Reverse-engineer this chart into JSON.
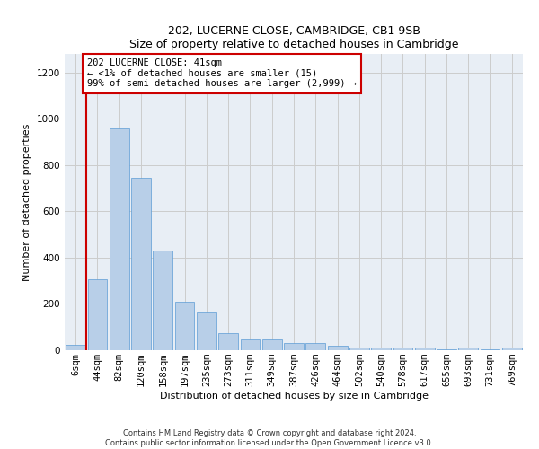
{
  "title1": "202, LUCERNE CLOSE, CAMBRIDGE, CB1 9SB",
  "title2": "Size of property relative to detached houses in Cambridge",
  "xlabel": "Distribution of detached houses by size in Cambridge",
  "ylabel": "Number of detached properties",
  "annotation_line1": "202 LUCERNE CLOSE: 41sqm",
  "annotation_line2": "← <1% of detached houses are smaller (15)",
  "annotation_line3": "99% of semi-detached houses are larger (2,999) →",
  "footer1": "Contains HM Land Registry data © Crown copyright and database right 2024.",
  "footer2": "Contains public sector information licensed under the Open Government Licence v3.0.",
  "bar_color": "#b8cfe8",
  "bar_edge_color": "#5b9bd5",
  "annotation_box_color": "#cc0000",
  "annotation_line_color": "#cc0000",
  "categories": [
    "6sqm",
    "44sqm",
    "82sqm",
    "120sqm",
    "158sqm",
    "197sqm",
    "235sqm",
    "273sqm",
    "311sqm",
    "349sqm",
    "387sqm",
    "426sqm",
    "464sqm",
    "502sqm",
    "540sqm",
    "578sqm",
    "617sqm",
    "655sqm",
    "693sqm",
    "731sqm",
    "769sqm"
  ],
  "values": [
    25,
    305,
    960,
    745,
    430,
    210,
    165,
    75,
    48,
    48,
    30,
    30,
    18,
    12,
    12,
    12,
    12,
    5,
    12,
    5,
    12
  ],
  "ylim": [
    0,
    1280
  ],
  "yticks": [
    0,
    200,
    400,
    600,
    800,
    1000,
    1200
  ],
  "grid_color": "#cccccc",
  "background_color": "#e8eef5",
  "title_fontsize": 9,
  "axis_fontsize": 8,
  "tick_fontsize": 7.5,
  "footer_fontsize": 6
}
